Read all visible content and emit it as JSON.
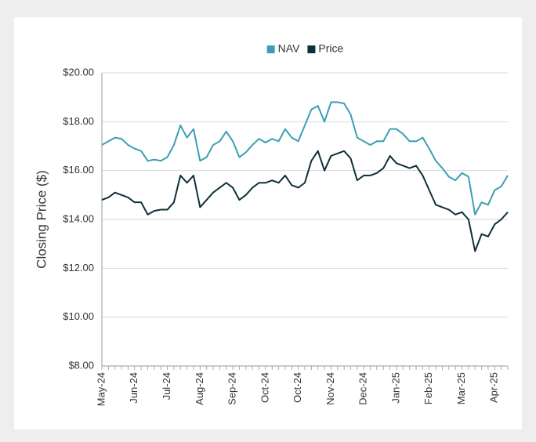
{
  "chart_data": {
    "type": "line",
    "y_label": "Closing Price ($)",
    "categories": [
      "May-24",
      null,
      null,
      null,
      null,
      "Jun-24",
      null,
      null,
      null,
      null,
      "Jul-24",
      null,
      null,
      null,
      null,
      "Aug-24",
      null,
      null,
      null,
      null,
      "Sep-24",
      null,
      null,
      null,
      null,
      "Oct-24",
      null,
      null,
      null,
      null,
      "Oct-24",
      null,
      null,
      null,
      null,
      "Nov-24",
      null,
      null,
      null,
      null,
      "Dec-24",
      null,
      null,
      null,
      null,
      "Jan-25",
      null,
      null,
      null,
      null,
      "Feb-25",
      null,
      null,
      null,
      null,
      "Mar-25",
      null,
      null,
      null,
      null,
      "Apr-25",
      null,
      null
    ],
    "series": [
      {
        "name": "NAV",
        "color": "#3a9fb5",
        "values": [
          17.05,
          17.2,
          17.35,
          17.3,
          17.05,
          16.9,
          16.8,
          16.4,
          16.45,
          16.4,
          16.55,
          17.05,
          17.85,
          17.35,
          17.7,
          16.4,
          16.55,
          17.05,
          17.2,
          17.6,
          17.2,
          16.55,
          16.75,
          17.05,
          17.3,
          17.15,
          17.3,
          17.2,
          17.7,
          17.35,
          17.2,
          17.85,
          18.5,
          18.65,
          18.0,
          18.8,
          18.8,
          18.75,
          18.3,
          17.35,
          17.2,
          17.05,
          17.2,
          17.2,
          17.7,
          17.7,
          17.5,
          17.2,
          17.2,
          17.35,
          16.9,
          16.4,
          16.1,
          15.75,
          15.6,
          15.9,
          15.75,
          14.2,
          14.7,
          14.6,
          15.2,
          15.35,
          15.8
        ]
      },
      {
        "name": "Price",
        "color": "#0d3038",
        "values": [
          14.8,
          14.9,
          15.1,
          15.0,
          14.9,
          14.7,
          14.7,
          14.2,
          14.35,
          14.4,
          14.4,
          14.7,
          15.8,
          15.5,
          15.8,
          14.5,
          14.8,
          15.1,
          15.3,
          15.5,
          15.3,
          14.8,
          15.0,
          15.3,
          15.5,
          15.5,
          15.6,
          15.5,
          15.8,
          15.4,
          15.3,
          15.5,
          16.4,
          16.8,
          16.0,
          16.6,
          16.7,
          16.8,
          16.5,
          15.6,
          15.8,
          15.8,
          15.9,
          16.1,
          16.6,
          16.3,
          16.2,
          16.1,
          16.2,
          15.8,
          15.2,
          14.6,
          14.5,
          14.4,
          14.2,
          14.3,
          14.0,
          12.7,
          13.4,
          13.3,
          13.8,
          14.0,
          14.3
        ]
      }
    ],
    "ylim": [
      8,
      20
    ],
    "yticks": [
      {
        "value": 8,
        "label": "$8.00"
      },
      {
        "value": 10,
        "label": "$10.00"
      },
      {
        "value": 12,
        "label": "$12.00"
      },
      {
        "value": 14,
        "label": "$14.00"
      },
      {
        "value": 16,
        "label": "$16.00"
      },
      {
        "value": 18,
        "label": "$18.00"
      },
      {
        "value": 20,
        "label": "$20.00"
      }
    ],
    "grid": true,
    "legend": "top"
  }
}
